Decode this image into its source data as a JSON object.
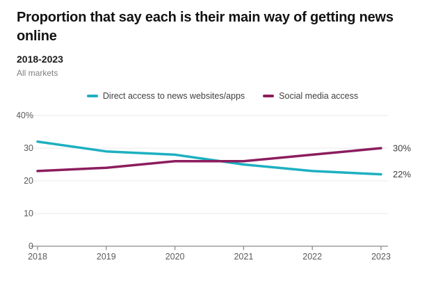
{
  "header": {
    "title": "Proportion that say each is their main way of getting news online",
    "subtitle": "2018-2023",
    "market_note": "All markets"
  },
  "legend": {
    "items": [
      {
        "label": "Direct access to news websites/apps",
        "color": "#1db0c1"
      },
      {
        "label": "Social media access",
        "color": "#8c1d5e"
      }
    ]
  },
  "chart_data": {
    "type": "line",
    "title": "Proportion that say each is their main way of getting news online",
    "subtitle": "2018-2023",
    "note": "All markets",
    "x": [
      "2018",
      "2019",
      "2020",
      "2021",
      "2022",
      "2023"
    ],
    "series": [
      {
        "name": "Direct access to news websites/apps",
        "color": "#1db0c1",
        "values": [
          32,
          29,
          28,
          25,
          23,
          22
        ],
        "end_label": "22%"
      },
      {
        "name": "Social media access",
        "color": "#8c1d5e",
        "values": [
          23,
          24,
          26,
          26,
          28,
          30
        ],
        "end_label": "30%"
      }
    ],
    "y_ticks": [
      {
        "value": 40,
        "label": "40%"
      },
      {
        "value": 30,
        "label": "30"
      },
      {
        "value": 20,
        "label": "20"
      },
      {
        "value": 10,
        "label": "10"
      },
      {
        "value": 0,
        "label": "0"
      }
    ],
    "ylim": [
      0,
      40
    ],
    "grid": "horizontal",
    "legend_position": "top",
    "colors": {
      "gridline": "#e8e8e8",
      "axis": "#8a8a8a",
      "axis_text": "#5a5a5a",
      "end_label_text": "#3d3d3d"
    }
  }
}
